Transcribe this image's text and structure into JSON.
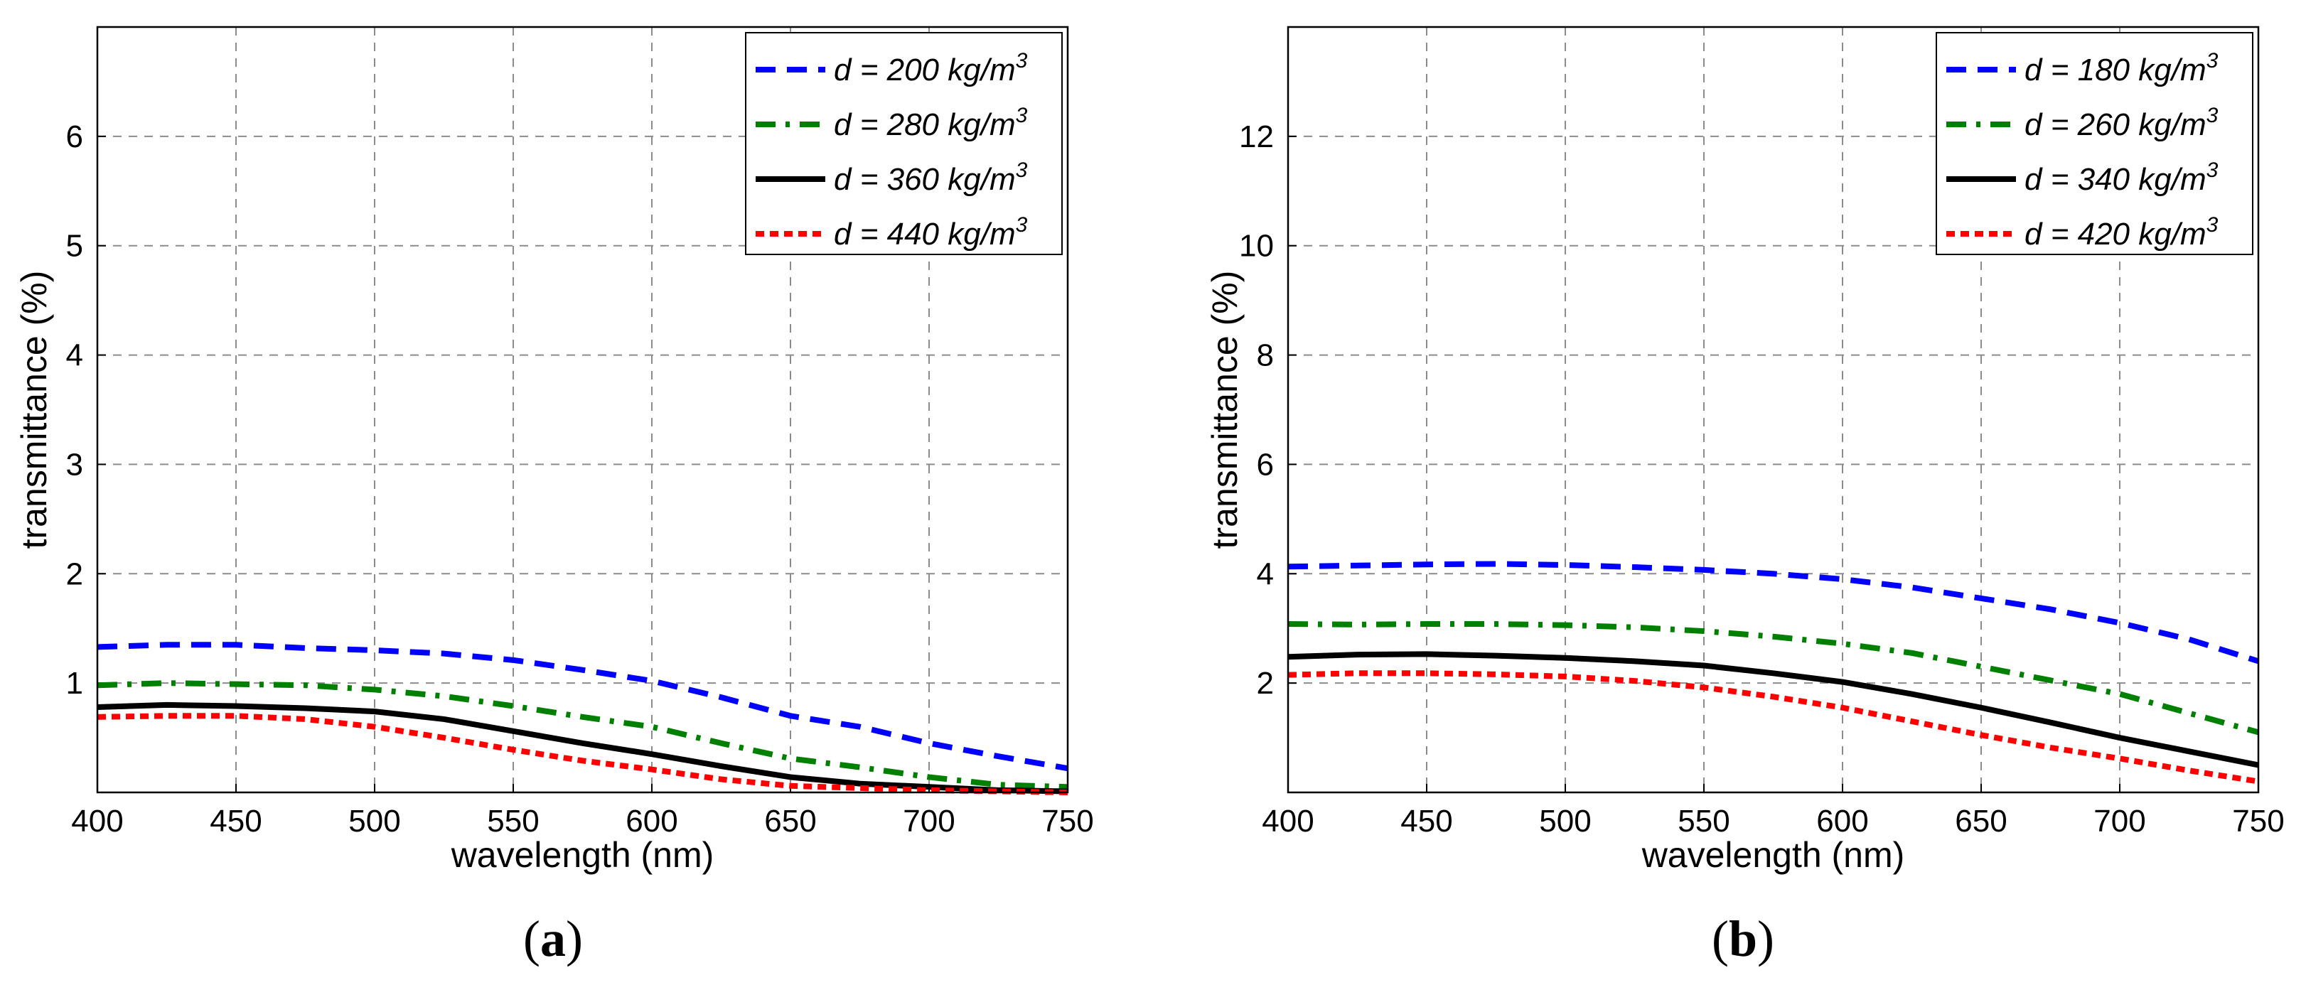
{
  "chart_data": [
    {
      "type": "line",
      "panel_label": "a",
      "xlabel": "wavelength (nm)",
      "ylabel": "transmittance (%)",
      "xlim": [
        400,
        750
      ],
      "ylim": [
        0,
        7
      ],
      "xticks": [
        400,
        450,
        500,
        550,
        600,
        650,
        700,
        750
      ],
      "yticks": [
        1,
        2,
        3,
        4,
        5,
        6
      ],
      "grid": true,
      "legend_position": "top-right",
      "x": [
        400,
        425,
        450,
        475,
        500,
        525,
        550,
        575,
        600,
        625,
        650,
        675,
        700,
        725,
        750
      ],
      "series": [
        {
          "name": "d = 200 kg/m",
          "unit_exp": "3",
          "color": "#0000ff",
          "style": "dashed",
          "values": [
            1.33,
            1.35,
            1.35,
            1.32,
            1.3,
            1.27,
            1.21,
            1.12,
            1.02,
            0.87,
            0.7,
            0.6,
            0.45,
            0.33,
            0.22
          ]
        },
        {
          "name": "d = 280 kg/m",
          "unit_exp": "3",
          "color": "#008000",
          "style": "dashdot",
          "values": [
            0.98,
            1.0,
            0.99,
            0.98,
            0.94,
            0.88,
            0.79,
            0.69,
            0.6,
            0.45,
            0.31,
            0.23,
            0.14,
            0.07,
            0.05
          ]
        },
        {
          "name": "d = 360 kg/m",
          "unit_exp": "3",
          "color": "#000000",
          "style": "solid",
          "values": [
            0.78,
            0.8,
            0.79,
            0.77,
            0.74,
            0.67,
            0.56,
            0.45,
            0.35,
            0.24,
            0.14,
            0.08,
            0.05,
            0.02,
            0.01
          ]
        },
        {
          "name": "d = 440 kg/m",
          "unit_exp": "3",
          "color": "#ff0000",
          "style": "dotted",
          "values": [
            0.69,
            0.7,
            0.7,
            0.67,
            0.6,
            0.5,
            0.39,
            0.29,
            0.21,
            0.12,
            0.06,
            0.04,
            0.02,
            0.01,
            0.0
          ]
        }
      ]
    },
    {
      "type": "line",
      "panel_label": "b",
      "xlabel": "wavelength (nm)",
      "ylabel": "transmittance (%)",
      "xlim": [
        400,
        750
      ],
      "ylim": [
        0,
        14
      ],
      "xticks": [
        400,
        450,
        500,
        550,
        600,
        650,
        700,
        750
      ],
      "yticks": [
        2,
        4,
        6,
        8,
        10,
        12
      ],
      "grid": true,
      "legend_position": "top-right",
      "x": [
        400,
        425,
        450,
        475,
        500,
        525,
        550,
        575,
        600,
        625,
        650,
        675,
        700,
        725,
        750
      ],
      "series": [
        {
          "name": "d = 180 kg/m",
          "unit_exp": "3",
          "color": "#0000ff",
          "style": "dashed",
          "values": [
            4.13,
            4.15,
            4.17,
            4.18,
            4.16,
            4.12,
            4.07,
            4.0,
            3.9,
            3.75,
            3.55,
            3.35,
            3.1,
            2.8,
            2.4
          ]
        },
        {
          "name": "d = 260 kg/m",
          "unit_exp": "3",
          "color": "#008000",
          "style": "dashdot",
          "values": [
            3.08,
            3.07,
            3.08,
            3.08,
            3.06,
            3.02,
            2.95,
            2.85,
            2.72,
            2.55,
            2.3,
            2.05,
            1.8,
            1.45,
            1.1
          ]
        },
        {
          "name": "d = 340 kg/m",
          "unit_exp": "3",
          "color": "#000000",
          "style": "solid",
          "values": [
            2.48,
            2.52,
            2.53,
            2.5,
            2.46,
            2.4,
            2.32,
            2.18,
            2.02,
            1.8,
            1.55,
            1.28,
            1.0,
            0.75,
            0.5
          ]
        },
        {
          "name": "d = 420 kg/m",
          "unit_exp": "3",
          "color": "#ff0000",
          "style": "dotted",
          "values": [
            2.15,
            2.18,
            2.18,
            2.16,
            2.12,
            2.04,
            1.92,
            1.75,
            1.55,
            1.3,
            1.05,
            0.82,
            0.62,
            0.4,
            0.2
          ]
        }
      ]
    }
  ]
}
